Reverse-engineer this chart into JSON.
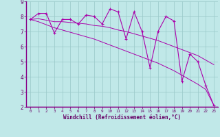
{
  "xlabel": "Windchill (Refroidissement éolien,°C)",
  "ylabel": "",
  "bg_color": "#c0e8e8",
  "grid_color": "#98c8c8",
  "line_color": "#aa00aa",
  "spine_color": "#880088",
  "xlabel_color": "#660066",
  "tick_color": "#660066",
  "xlim": [
    -0.5,
    23.5
  ],
  "ylim": [
    2,
    9
  ],
  "x_hours": [
    0,
    1,
    2,
    3,
    4,
    5,
    6,
    7,
    8,
    9,
    10,
    11,
    12,
    13,
    14,
    15,
    16,
    17,
    18,
    19,
    20,
    21,
    22,
    23
  ],
  "temp_data": [
    7.8,
    8.2,
    8.2,
    6.9,
    7.8,
    7.8,
    7.5,
    8.1,
    8.0,
    7.5,
    8.5,
    8.3,
    6.5,
    8.3,
    7.0,
    4.6,
    7.0,
    8.0,
    7.7,
    3.7,
    5.5,
    5.0,
    3.4,
    2.1
  ],
  "trend1_data": [
    7.8,
    7.85,
    7.75,
    7.65,
    7.65,
    7.6,
    7.55,
    7.5,
    7.4,
    7.35,
    7.25,
    7.1,
    7.0,
    6.85,
    6.7,
    6.55,
    6.4,
    6.2,
    6.0,
    5.8,
    5.6,
    5.4,
    5.1,
    4.8
  ],
  "trend2_data": [
    7.8,
    7.65,
    7.45,
    7.25,
    7.1,
    6.95,
    6.8,
    6.65,
    6.5,
    6.3,
    6.1,
    5.9,
    5.7,
    5.5,
    5.3,
    5.1,
    4.9,
    4.65,
    4.4,
    4.1,
    3.8,
    3.5,
    3.15,
    2.1
  ]
}
